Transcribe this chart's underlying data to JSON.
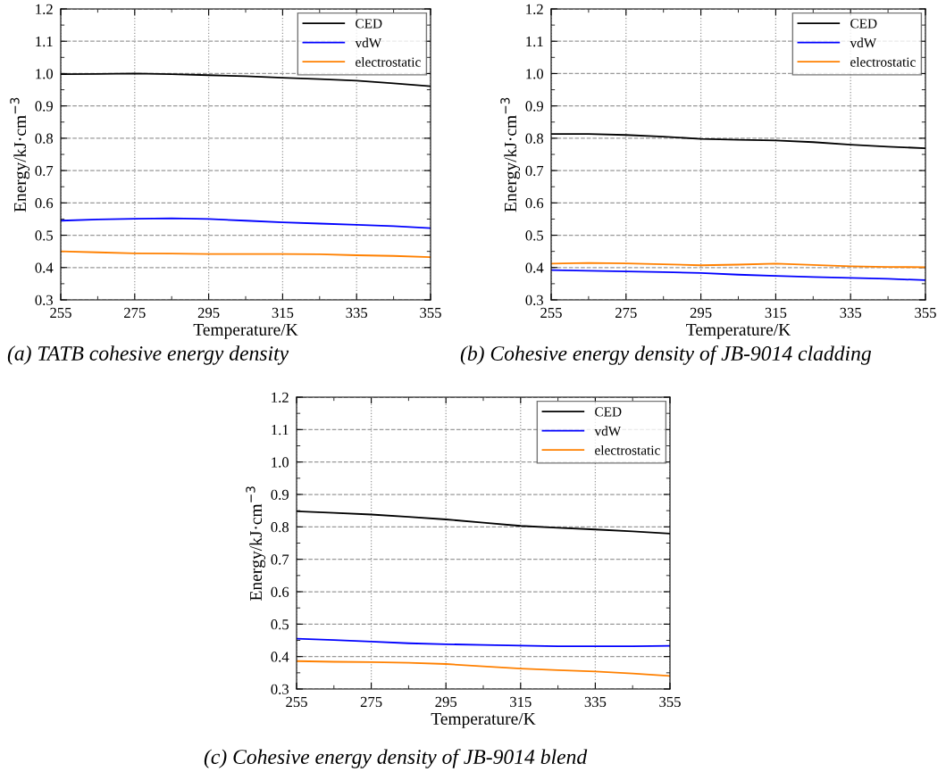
{
  "chart_data": [
    {
      "type": "line",
      "xlabel": "Temperature/K",
      "ylabel": "Energy/kJ·cm$^{−3}$",
      "annotations": [
        "(a) TATB cohesive energy density"
      ],
      "x": [
        255,
        265,
        275,
        285,
        295,
        305,
        315,
        325,
        335,
        345,
        355
      ],
      "series": [
        {
          "name": "CED",
          "color": "#000000",
          "values": [
            0.998,
            0.999,
            1.0,
            0.998,
            0.995,
            0.992,
            0.987,
            0.983,
            0.978,
            0.97,
            0.961
          ]
        },
        {
          "name": "vdW",
          "color": "#0000ff",
          "values": [
            0.545,
            0.549,
            0.551,
            0.552,
            0.55,
            0.545,
            0.54,
            0.536,
            0.532,
            0.528,
            0.522
          ]
        },
        {
          "name": "electrostatic",
          "color": "#ff8000",
          "values": [
            0.45,
            0.447,
            0.444,
            0.443,
            0.442,
            0.442,
            0.442,
            0.441,
            0.438,
            0.436,
            0.432
          ]
        }
      ],
      "xlim": [
        255,
        355
      ],
      "xticks": [
        255,
        275,
        295,
        315,
        335,
        355
      ],
      "ylim": [
        0.3,
        1.2
      ],
      "yticks": [
        {
          "value": 0.3,
          "label": "0.3"
        },
        {
          "value": 0.4,
          "label": "0.4"
        },
        {
          "value": 0.5,
          "label": "0.5"
        },
        {
          "value": 0.6,
          "label": "0.6"
        },
        {
          "value": 0.7,
          "label": "0.7"
        },
        {
          "value": 0.8,
          "label": "0.8"
        },
        {
          "value": 0.9,
          "label": "0.9"
        },
        {
          "value": 1.0,
          "label": "1.0"
        },
        {
          "value": 1.1,
          "label": "1.1"
        },
        {
          "value": 1.2,
          "label": "1.2"
        }
      ],
      "grid": true,
      "legend": "top right",
      "marker": "none",
      "line_style": "solid"
    },
    {
      "type": "line",
      "xlabel": "Temperature/K",
      "ylabel": "Energy/kJ·cm$^{−3}$",
      "annotations": [
        "(b) Cohesive energy density of JB-9014 cladding"
      ],
      "x": [
        255,
        265,
        275,
        285,
        295,
        305,
        315,
        325,
        335,
        345,
        355
      ],
      "series": [
        {
          "name": "CED",
          "color": "#000000",
          "values": [
            0.813,
            0.813,
            0.81,
            0.805,
            0.798,
            0.795,
            0.793,
            0.788,
            0.78,
            0.774,
            0.769
          ]
        },
        {
          "name": "vdW",
          "color": "#0000ff",
          "values": [
            0.392,
            0.39,
            0.388,
            0.386,
            0.383,
            0.378,
            0.374,
            0.371,
            0.368,
            0.365,
            0.361
          ]
        },
        {
          "name": "electrostatic",
          "color": "#ff8000",
          "values": [
            0.412,
            0.414,
            0.413,
            0.41,
            0.407,
            0.409,
            0.412,
            0.408,
            0.404,
            0.402,
            0.401
          ]
        }
      ],
      "xlim": [
        255,
        355
      ],
      "xticks": [
        255,
        275,
        295,
        315,
        335,
        355
      ],
      "ylim": [
        0.3,
        1.2
      ],
      "yticks": [
        {
          "value": 0.3,
          "label": "0.3"
        },
        {
          "value": 0.4,
          "label": "0.4"
        },
        {
          "value": 0.5,
          "label": "0.5"
        },
        {
          "value": 0.6,
          "label": "0.6"
        },
        {
          "value": 0.7,
          "label": "0.7"
        },
        {
          "value": 0.8,
          "label": "0.8"
        },
        {
          "value": 0.9,
          "label": "0.9"
        },
        {
          "value": 1.0,
          "label": "1.0"
        },
        {
          "value": 1.1,
          "label": "1.1"
        },
        {
          "value": 1.2,
          "label": "1.2"
        }
      ],
      "grid": true,
      "legend": "top right",
      "marker": "none",
      "line_style": "solid"
    },
    {
      "type": "line",
      "xlabel": "Temperature/K",
      "ylabel": "Energy/kJ·cm$^{−3}$",
      "annotations": [
        "(c) Cohesive energy density of JB-9014 blend"
      ],
      "x": [
        255,
        265,
        275,
        285,
        295,
        305,
        315,
        325,
        335,
        345,
        355
      ],
      "series": [
        {
          "name": "CED",
          "color": "#000000",
          "values": [
            0.848,
            0.843,
            0.838,
            0.831,
            0.823,
            0.813,
            0.803,
            0.797,
            0.792,
            0.786,
            0.779
          ]
        },
        {
          "name": "vdW",
          "color": "#0000ff",
          "values": [
            0.455,
            0.451,
            0.446,
            0.441,
            0.438,
            0.436,
            0.434,
            0.432,
            0.432,
            0.432,
            0.433
          ]
        },
        {
          "name": "electrostatic",
          "color": "#ff8000",
          "values": [
            0.386,
            0.384,
            0.383,
            0.381,
            0.377,
            0.37,
            0.363,
            0.358,
            0.354,
            0.348,
            0.34
          ]
        }
      ],
      "xlim": [
        255,
        355
      ],
      "xticks": [
        255,
        275,
        295,
        315,
        335,
        355
      ],
      "ylim": [
        0.3,
        1.2
      ],
      "yticks": [
        {
          "value": 0.3,
          "label": "0.3"
        },
        {
          "value": 0.4,
          "label": "0.4"
        },
        {
          "value": 0.5,
          "label": "0.5"
        },
        {
          "value": 0.6,
          "label": "0.6"
        },
        {
          "value": 0.7,
          "label": "0.7"
        },
        {
          "value": 0.8,
          "label": "0.8"
        },
        {
          "value": 0.9,
          "label": "0.9"
        },
        {
          "value": 1.0,
          "label": "1.0"
        },
        {
          "value": 1.1,
          "label": "1.1"
        },
        {
          "value": 1.2,
          "label": "1.2"
        }
      ],
      "grid": true,
      "legend": "top right",
      "marker": "none",
      "line_style": "solid"
    }
  ]
}
